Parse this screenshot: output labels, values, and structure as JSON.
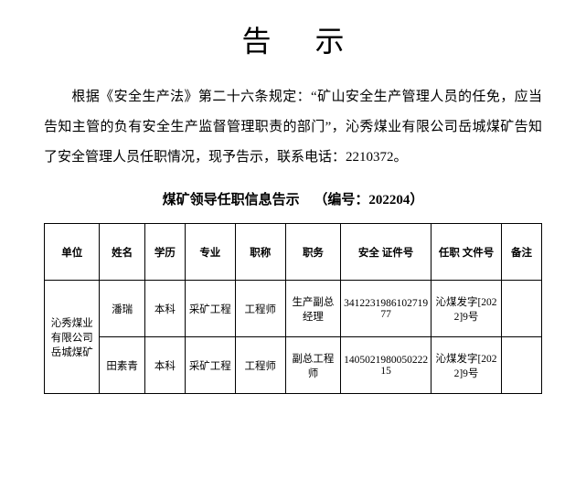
{
  "title": "告示",
  "body": "根据《安全生产法》第二十六条规定：“矿山安全生产管理人员的任免，应当告知主管的负有安全生产监督管理职责的部门”，沁秀煤业有限公司岳城煤矿告知了安全管理人员任职情况，现予告示，联系电话：2210372。",
  "table_caption": "煤矿领导任职信息告示",
  "table_number": "（编号：202204）",
  "columns": {
    "unit": "单位",
    "name": "姓名",
    "edu": "学历",
    "major": "专业",
    "title": "职称",
    "duty": "职务",
    "cert": "安全\n证件号",
    "doc": "任职\n文件号",
    "note": "备注"
  },
  "unit": "沁秀煤业有限公司岳城煤矿",
  "rows": [
    {
      "name": "潘瑞",
      "edu": "本科",
      "major": "采矿工程",
      "title": "工程师",
      "duty": "生产副总经理",
      "cert": "34122319861027197​7",
      "doc": "沁煤发字[2022]9号",
      "note": ""
    },
    {
      "name": "田素青",
      "edu": "本科",
      "major": "采矿工程",
      "title": "工程师",
      "duty": "副总工程师",
      "cert": "14050219800502221​5",
      "doc": "沁煤发字[2022]9号",
      "note": ""
    }
  ]
}
